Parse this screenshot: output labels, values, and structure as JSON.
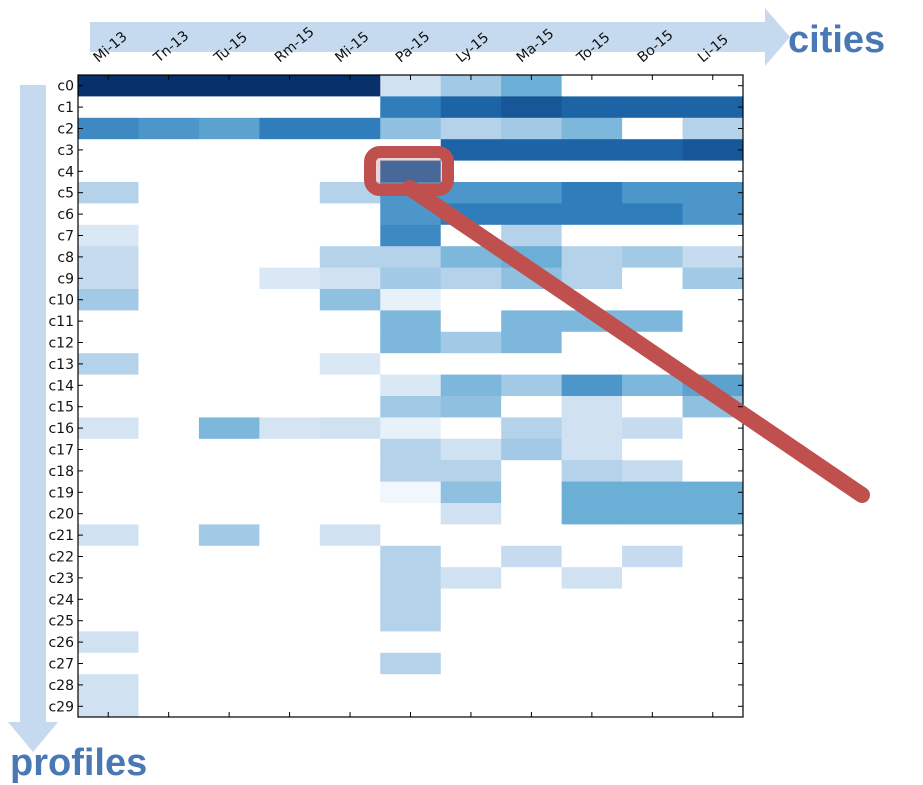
{
  "chart_data": {
    "type": "heatmap",
    "colormap": "Blues",
    "xlabel": "cities",
    "ylabel": "profiles",
    "x_categories": [
      "Mi-13",
      "Tn-13",
      "Tu-15",
      "Rm-15",
      "Mi-15",
      "Pa-15",
      "Ly-15",
      "Ma-15",
      "To-15",
      "Bo-15",
      "Li-15"
    ],
    "y_categories": [
      "c0",
      "c1",
      "c2",
      "c3",
      "c4",
      "c5",
      "c6",
      "c7",
      "c8",
      "c9",
      "c10",
      "c11",
      "c12",
      "c13",
      "c14",
      "c15",
      "c16",
      "c17",
      "c18",
      "c19",
      "c20",
      "c21",
      "c22",
      "c23",
      "c24",
      "c25",
      "c26",
      "c27",
      "c28",
      "c29"
    ],
    "zlim": [
      0,
      1
    ],
    "values": [
      [
        1,
        1,
        1,
        1,
        1,
        0.2,
        0.35,
        0.5,
        0,
        0,
        0
      ],
      [
        0,
        0,
        0,
        0,
        0,
        0.7,
        0.8,
        0.85,
        0.8,
        0.8,
        0.8
      ],
      [
        0.65,
        0.6,
        0.55,
        0.7,
        0.7,
        0.4,
        0.3,
        0.35,
        0.45,
        0,
        0.3
      ],
      [
        0,
        0,
        0,
        0,
        0,
        0,
        0.8,
        0.8,
        0.8,
        0.8,
        0.85
      ],
      [
        0,
        0,
        0,
        0,
        0,
        0.75,
        0,
        0,
        0,
        0,
        0
      ],
      [
        0.3,
        0,
        0,
        0,
        0.3,
        0.6,
        0.6,
        0.6,
        0.7,
        0.6,
        0.6
      ],
      [
        0,
        0,
        0,
        0,
        0,
        0.6,
        0.7,
        0.7,
        0.7,
        0.7,
        0.6
      ],
      [
        0.15,
        0,
        0,
        0,
        0,
        0.65,
        0,
        0.3,
        0,
        0,
        0
      ],
      [
        0.25,
        0,
        0,
        0,
        0.3,
        0.3,
        0.45,
        0.5,
        0.3,
        0.35,
        0.25
      ],
      [
        0.25,
        0,
        0,
        0.15,
        0.2,
        0.35,
        0.3,
        0.4,
        0.3,
        0,
        0.35
      ],
      [
        0.35,
        0,
        0,
        0,
        0.4,
        0.08,
        0,
        0,
        0,
        0,
        0
      ],
      [
        0,
        0,
        0,
        0,
        0,
        0.45,
        0,
        0.45,
        0.45,
        0.45,
        0
      ],
      [
        0,
        0,
        0,
        0,
        0,
        0.45,
        0.35,
        0.45,
        0,
        0,
        0
      ],
      [
        0.3,
        0,
        0,
        0,
        0.15,
        0,
        0,
        0,
        0,
        0,
        0
      ],
      [
        0,
        0,
        0,
        0,
        0,
        0.15,
        0.45,
        0.35,
        0.6,
        0.45,
        0.55
      ],
      [
        0,
        0,
        0,
        0,
        0,
        0.35,
        0.4,
        0,
        0.2,
        0,
        0.4
      ],
      [
        0.18,
        0,
        0.45,
        0.18,
        0.2,
        0.08,
        0,
        0.3,
        0.2,
        0.25,
        0
      ],
      [
        0,
        0,
        0,
        0,
        0,
        0.3,
        0.2,
        0.35,
        0.2,
        0,
        0
      ],
      [
        0,
        0,
        0,
        0,
        0,
        0.3,
        0.3,
        0,
        0.3,
        0.25,
        0
      ],
      [
        0,
        0,
        0,
        0,
        0,
        0.03,
        0.4,
        0,
        0.5,
        0.5,
        0.5
      ],
      [
        0,
        0,
        0,
        0,
        0,
        0,
        0.2,
        0,
        0.5,
        0.5,
        0.5
      ],
      [
        0.2,
        0,
        0.35,
        0,
        0.2,
        0,
        0,
        0,
        0,
        0,
        0
      ],
      [
        0,
        0,
        0,
        0,
        0,
        0.3,
        0,
        0.25,
        0,
        0.25,
        0
      ],
      [
        0,
        0,
        0,
        0,
        0,
        0.3,
        0.2,
        0,
        0.2,
        0,
        0
      ],
      [
        0,
        0,
        0,
        0,
        0,
        0.3,
        0,
        0,
        0,
        0,
        0
      ],
      [
        0,
        0,
        0,
        0,
        0,
        0.3,
        0,
        0,
        0,
        0,
        0
      ],
      [
        0.2,
        0,
        0,
        0,
        0,
        0,
        0,
        0,
        0,
        0,
        0
      ],
      [
        0,
        0,
        0,
        0,
        0,
        0.3,
        0,
        0,
        0,
        0,
        0
      ],
      [
        0.2,
        0,
        0,
        0,
        0,
        0,
        0,
        0,
        0,
        0,
        0
      ],
      [
        0.2,
        0,
        0,
        0,
        0,
        0,
        0,
        0,
        0,
        0,
        0
      ]
    ]
  }
}
